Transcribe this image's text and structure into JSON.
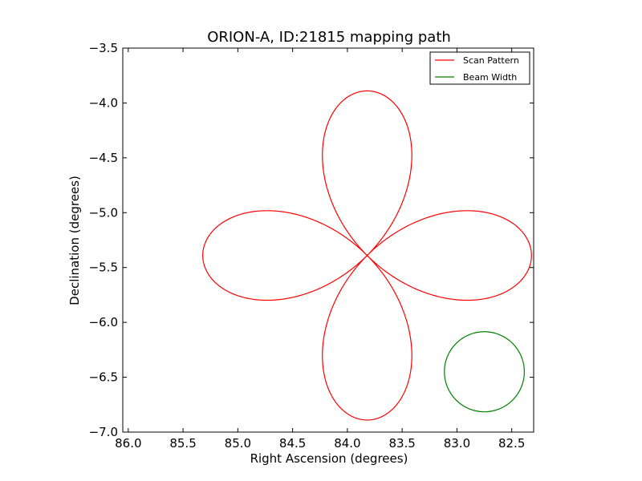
{
  "chart_data": {
    "type": "line",
    "title": "ORION-A, ID:21815 mapping path",
    "xlabel": "Right Ascension (degrees)",
    "ylabel": "Declination (degrees)",
    "xlim": [
      86.05,
      82.3
    ],
    "ylim": [
      -7.0,
      -3.5
    ],
    "x_inverted": true,
    "xticks": [
      "86.0",
      "85.5",
      "85.0",
      "84.5",
      "84.0",
      "83.5",
      "83.0",
      "82.5"
    ],
    "xtick_values": [
      86.0,
      85.5,
      85.0,
      84.5,
      84.0,
      83.5,
      83.0,
      82.5
    ],
    "yticks": [
      "−3.5",
      "−4.0",
      "−4.5",
      "−5.0",
      "−5.5",
      "−6.0",
      "−6.5",
      "−7.0"
    ],
    "ytick_values": [
      -3.5,
      -4.0,
      -4.5,
      -5.0,
      -5.5,
      -6.0,
      -6.5,
      -7.0
    ],
    "grid": false,
    "legend_position": "top-right",
    "series": [
      {
        "name": "Scan Pattern",
        "color": "#ff0000",
        "shape": "four-petal rose",
        "center": [
          83.82,
          -5.39
        ],
        "petal_extent_ra": 1.5,
        "petal_extent_dec": 1.5
      },
      {
        "name": "Beam Width",
        "color": "#008000",
        "shape": "circle",
        "center": [
          82.75,
          -6.45
        ],
        "radius": 0.365
      }
    ]
  }
}
